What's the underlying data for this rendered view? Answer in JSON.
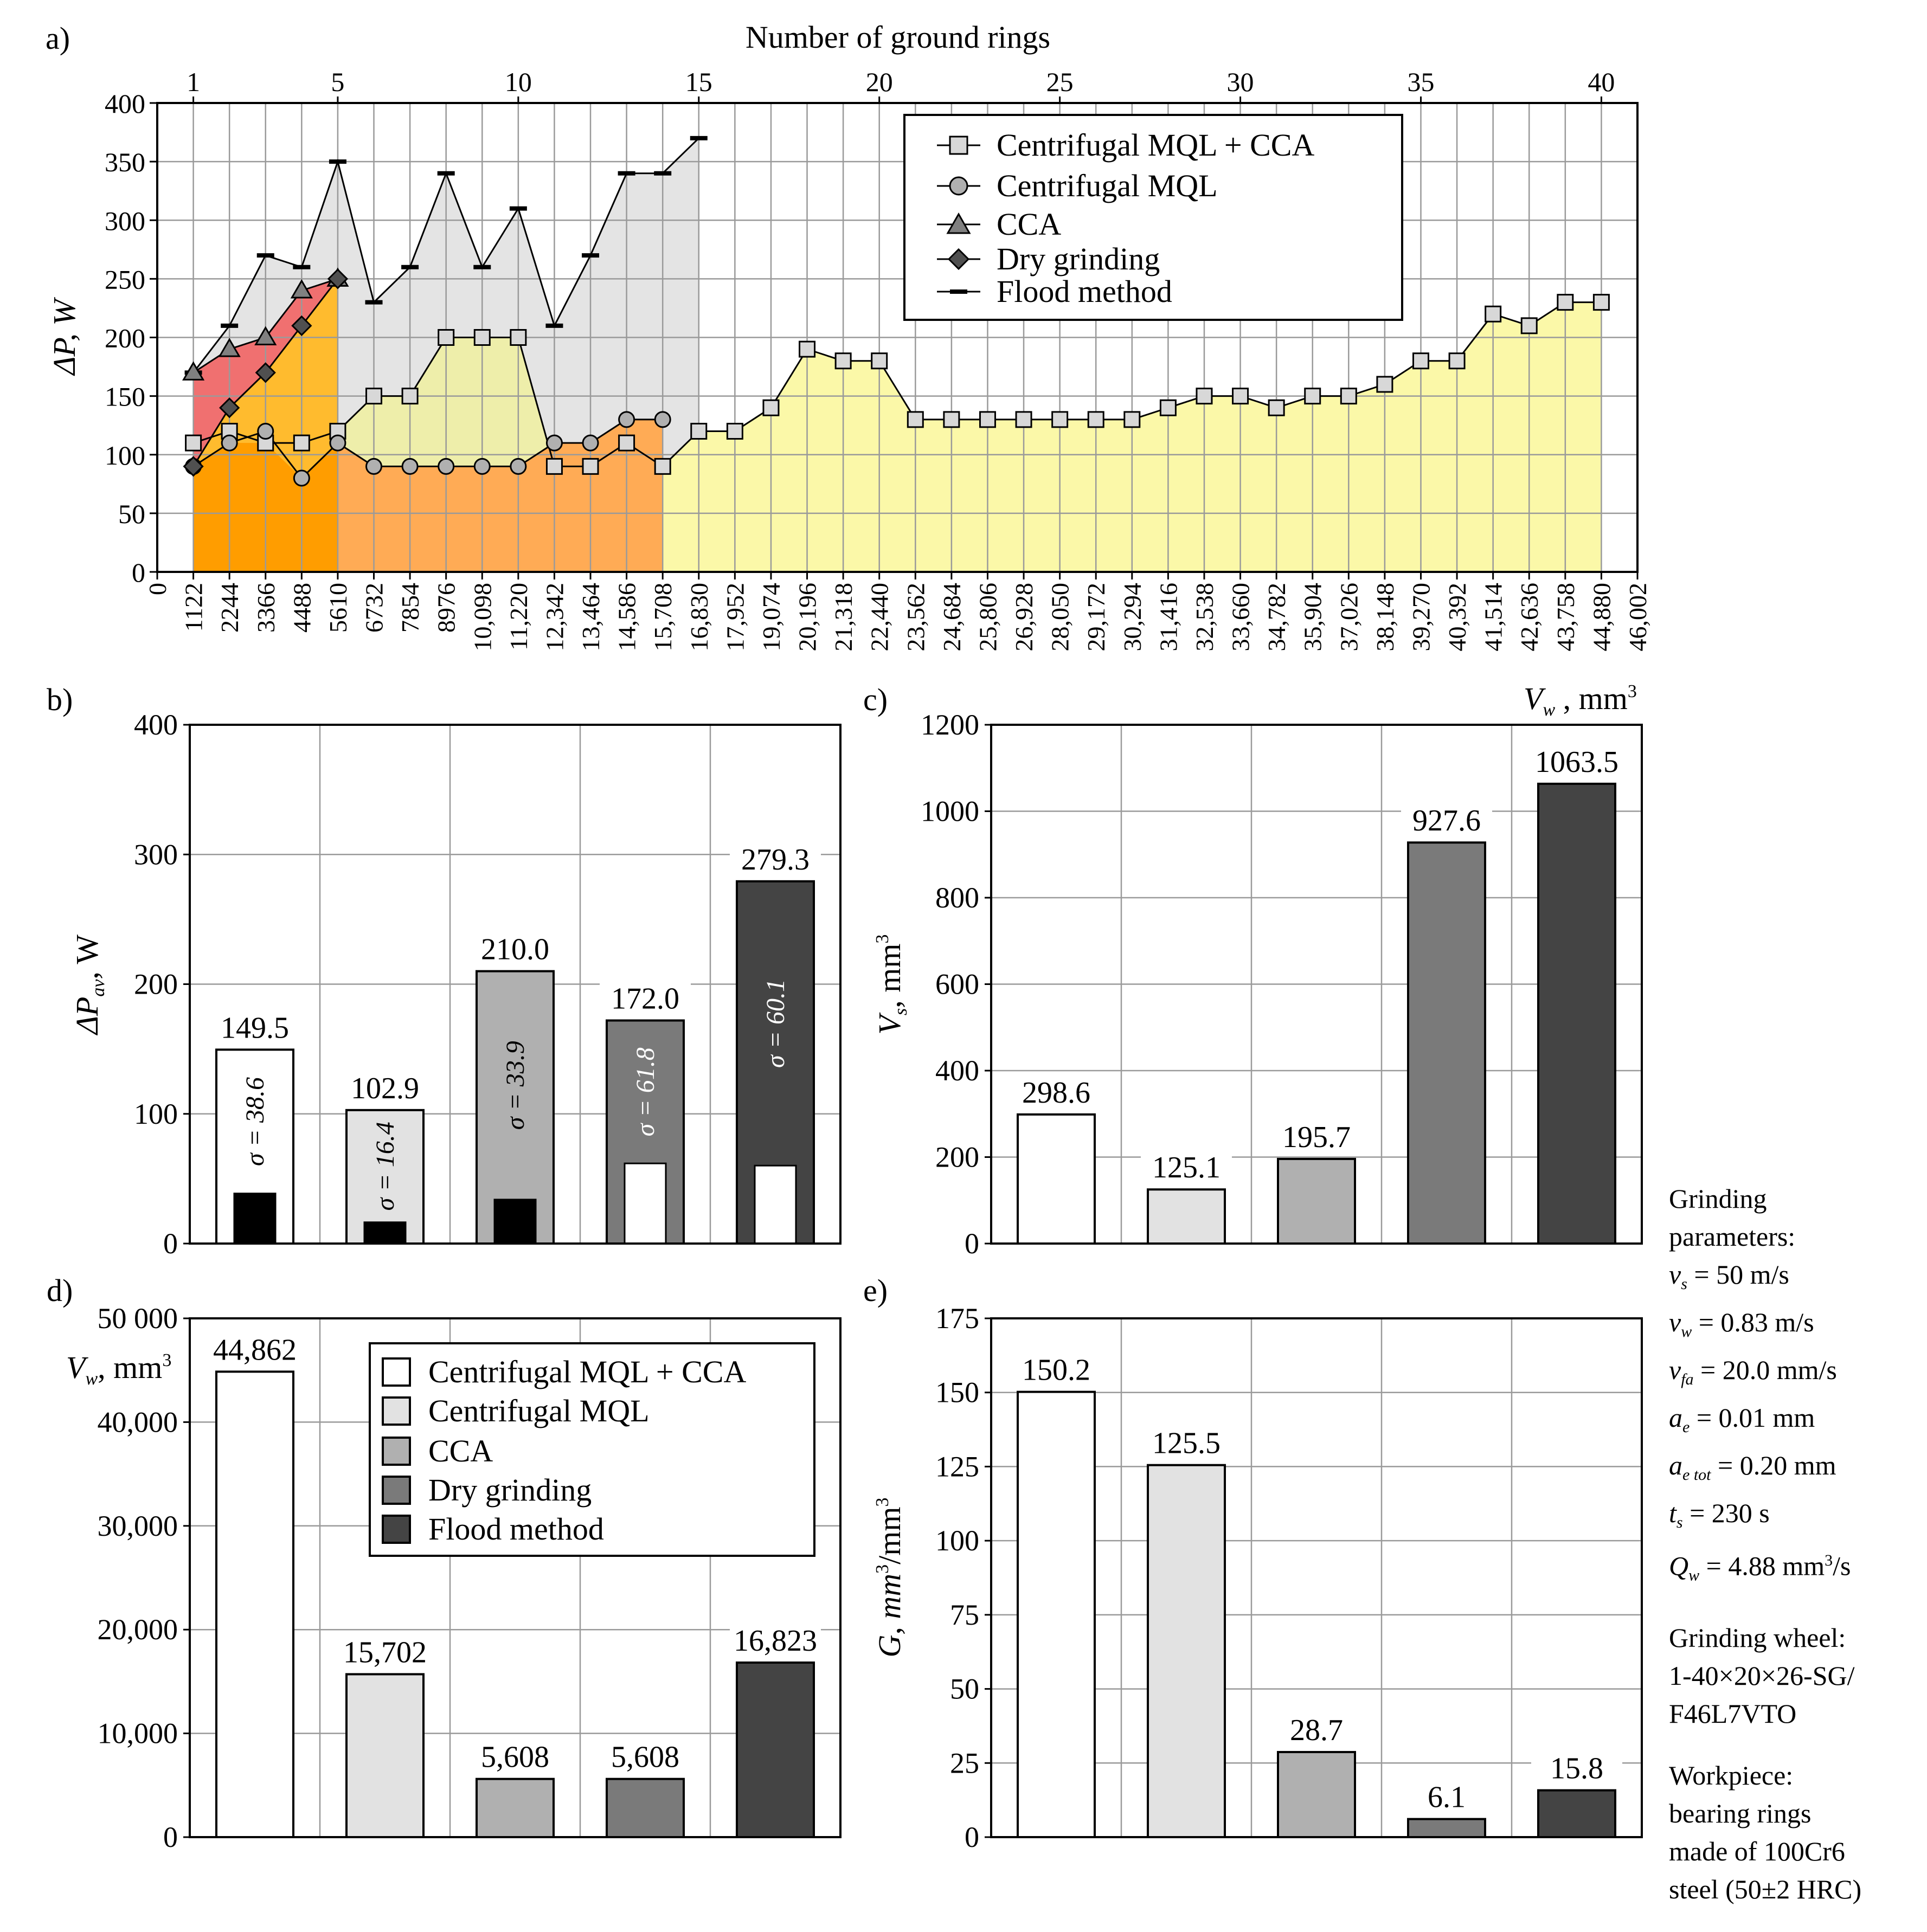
{
  "panels": {
    "a": {
      "label": "a)",
      "top_axis_title": "Number of ground rings",
      "top_ticks": [
        "1",
        "5",
        "10",
        "15",
        "20",
        "25",
        "30",
        "35",
        "40"
      ],
      "ylabel": "ΔP, W",
      "xlabel": "V",
      "xlabel_sub": "w",
      "xlabel_unit": " , mm",
      "xlabel_sup": "3",
      "yticks": [
        "0",
        "50",
        "100",
        "150",
        "200",
        "250",
        "300",
        "350",
        "400"
      ],
      "xticks": [
        "0",
        "1122",
        "2244",
        "3366",
        "4488",
        "5610",
        "6732",
        "7854",
        "8976",
        "10,098",
        "11,220",
        "12,342",
        "13,464",
        "14,586",
        "15,708",
        "16,830",
        "17,952",
        "19,074",
        "20,196",
        "21,318",
        "22,440",
        "23,562",
        "24,684",
        "25,806",
        "26,928",
        "28,050",
        "29,172",
        "30,294",
        "31,416",
        "32,538",
        "33,660",
        "34,782",
        "35,904",
        "37,026",
        "38,148",
        "39,270",
        "40,392",
        "41,514",
        "42,636",
        "43,758",
        "44,880",
        "46,002"
      ],
      "legend": [
        "Centrifugal MQL + CCA",
        "Centrifugal MQL",
        "CCA",
        "Dry grinding",
        "Flood method"
      ]
    },
    "b": {
      "label": "b)",
      "ylabel": "ΔP",
      "ylabel_sub": "av",
      "ylabel_unit": ", W",
      "yticks": [
        "0",
        "100",
        "200",
        "300",
        "400"
      ]
    },
    "c": {
      "label": "c)",
      "ylabel": "V",
      "ylabel_sub": "s",
      "ylabel_unit": ", mm",
      "ylabel_sup": "3",
      "yticks": [
        "0",
        "200",
        "400",
        "600",
        "800",
        "1000",
        "1200"
      ]
    },
    "d": {
      "label": "d)",
      "ylabel": "V",
      "ylabel_sub": "w",
      "ylabel_unit": ", mm",
      "ylabel_sup": "3",
      "yticks": [
        "0",
        "10,000",
        "20,000",
        "30,000",
        "40,000",
        "50 000"
      ],
      "legend": [
        "Centrifugal MQL + CCA",
        "Centrifugal MQL",
        "CCA",
        "Dry grinding",
        "Flood method"
      ]
    },
    "e": {
      "label": "e)",
      "ylabel": "G, mm",
      "ylabel_sup1": "3",
      "ylabel_mid": "/mm",
      "ylabel_sup2": "3",
      "yticks": [
        "0",
        "25",
        "50",
        "75",
        "100",
        "125",
        "150",
        "175"
      ]
    }
  },
  "colors": {
    "mql_cca": "#ffffff",
    "mql": "#e2e2e2",
    "cca": "#b0b0b0",
    "dry": "#7a7a7a",
    "flood": "#444444",
    "fill_flood": "#e4e4e4",
    "fill_mqlcca": "#fbf8a8",
    "fill_mql": "#eeeeaa",
    "fill_mql_orange": "#ffab55",
    "fill_dry": "#ffbb2e",
    "fill_cca": "#f07070",
    "fill_dry_base": "#ff9d00"
  },
  "notes": {
    "params_title": "Grinding",
    "params_title2": "parameters:",
    "vs_sym": "v",
    "vs_sub": "s",
    "vs_val": " = 50 m/s",
    "vw_sym": "v",
    "vw_sub": "w",
    "vw_val": " = 0.83 m/s",
    "vfa_sym": "v",
    "vfa_sub": "fa",
    "vfa_val": " = 20.0 mm/s",
    "ae_sym": "a",
    "ae_sub": "e",
    "ae_val": " = 0.01 mm",
    "aetot_sym": "a",
    "aetot_sub": "e tot",
    "aetot_val": " = 0.20 mm",
    "ts_sym": "t",
    "ts_sub": "s",
    "ts_val": " = 230 s",
    "qw_sym": "Q",
    "qw_sub": "w",
    "qw_val": " = 4.88 mm",
    "qw_sup": "3",
    "qw_tail": "/s",
    "wheel_title": "Grinding wheel:",
    "wheel_1": "1-40×20×26-SG/",
    "wheel_2": "F46L7VTO",
    "work_title": "Workpiece:",
    "work_1": "bearing rings",
    "work_2": "made of 100Cr6",
    "work_3": "steel (50±2 HRC)"
  },
  "chart_data": [
    {
      "type": "line",
      "panel": "a",
      "xlabel": "Vw, mm3",
      "ylabel": "ΔP, W",
      "ylim": [
        0,
        400
      ],
      "x_unit_step": 1122,
      "series": [
        {
          "name": "Centrifugal MQL + CCA",
          "marker": "square",
          "values": [
            110,
            120,
            110,
            110,
            120,
            150,
            150,
            200,
            200,
            200,
            90,
            90,
            110,
            90,
            120,
            120,
            140,
            190,
            180,
            180,
            130,
            130,
            130,
            130,
            130,
            130,
            130,
            140,
            150,
            150,
            140,
            150,
            150,
            160,
            180,
            180,
            220,
            210,
            230,
            230
          ]
        },
        {
          "name": "Centrifugal MQL",
          "marker": "circle",
          "values": [
            90,
            110,
            120,
            80,
            110,
            90,
            90,
            90,
            90,
            90,
            110,
            110,
            130,
            130
          ]
        },
        {
          "name": "CCA",
          "marker": "triangle",
          "values": [
            170,
            190,
            200,
            240,
            250
          ]
        },
        {
          "name": "Dry grinding",
          "marker": "diamond",
          "values": [
            90,
            140,
            170,
            210,
            250
          ]
        },
        {
          "name": "Flood method",
          "marker": "dash",
          "values": [
            170,
            210,
            270,
            260,
            350,
            230,
            260,
            340,
            260,
            310,
            210,
            270,
            340,
            340,
            370
          ]
        }
      ]
    },
    {
      "type": "bar",
      "panel": "b",
      "ylabel": "ΔPav, W",
      "ylim": [
        0,
        400
      ],
      "categories": [
        "Centrifugal MQL + CCA",
        "Centrifugal MQL",
        "CCA",
        "Dry grinding",
        "Flood method"
      ],
      "values": [
        149.5,
        102.9,
        210.0,
        172.0,
        279.3
      ],
      "labels": [
        "149.5",
        "102.9",
        "210.0",
        "172.0",
        "279.3"
      ],
      "sigma_values": [
        38.6,
        16.4,
        33.9,
        61.8,
        60.1
      ],
      "sigma_labels": [
        "σ = 38.6",
        "σ = 16.4",
        "σ = 33.9",
        "σ = 61.8",
        "σ = 60.1"
      ]
    },
    {
      "type": "bar",
      "panel": "c",
      "ylabel": "Vs, mm3",
      "ylim": [
        0,
        1200
      ],
      "categories": [
        "Centrifugal MQL + CCA",
        "Centrifugal MQL",
        "CCA",
        "Dry grinding",
        "Flood method"
      ],
      "values": [
        298.6,
        125.1,
        195.7,
        927.6,
        1063.5
      ],
      "labels": [
        "298.6",
        "125.1",
        "195.7",
        "927.6",
        "1063.5"
      ]
    },
    {
      "type": "bar",
      "panel": "d",
      "ylabel": "Vw, mm3",
      "ylim": [
        0,
        50000
      ],
      "categories": [
        "Centrifugal MQL + CCA",
        "Centrifugal MQL",
        "CCA",
        "Dry grinding",
        "Flood method"
      ],
      "values": [
        44862,
        15702,
        5608,
        5608,
        16823
      ],
      "labels": [
        "44,862",
        "15,702",
        "5,608",
        "5,608",
        "16,823"
      ]
    },
    {
      "type": "bar",
      "panel": "e",
      "ylabel": "G, mm3/mm3",
      "ylim": [
        0,
        175
      ],
      "categories": [
        "Centrifugal MQL + CCA",
        "Centrifugal MQL",
        "CCA",
        "Dry grinding",
        "Flood method"
      ],
      "values": [
        150.2,
        125.5,
        28.7,
        6.1,
        15.8
      ],
      "labels": [
        "150.2",
        "125.5",
        "28.7",
        "6.1",
        "15.8"
      ]
    }
  ]
}
